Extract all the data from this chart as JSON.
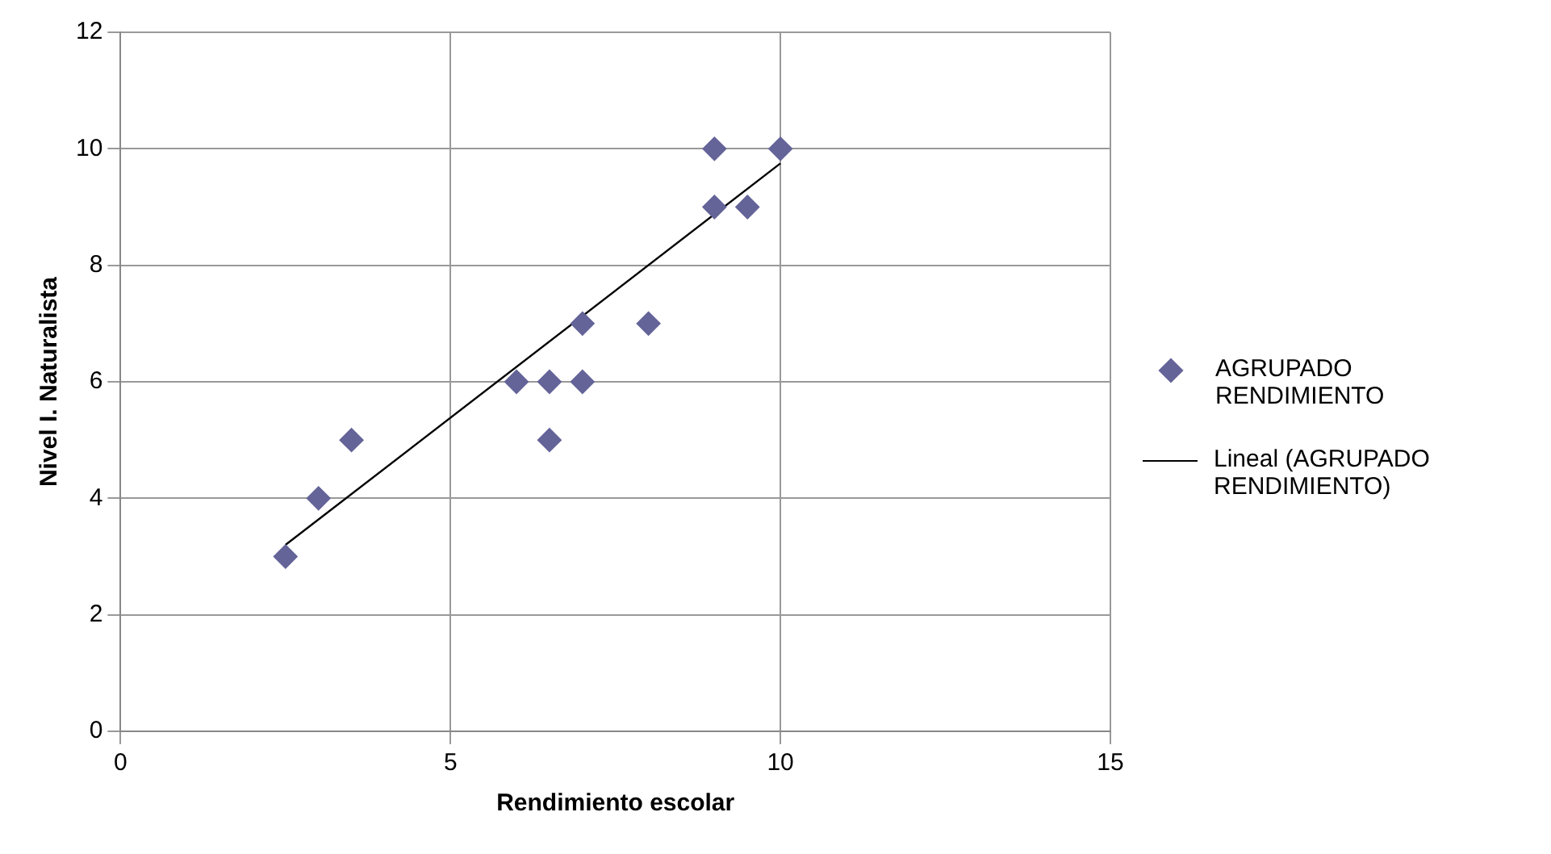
{
  "chart_data": {
    "type": "scatter",
    "xlabel": "Rendimiento escolar",
    "ylabel": "Nivel I. Naturalista",
    "series": [
      {
        "name": "AGRUPADO RENDIMIENTO",
        "color": "#646499",
        "marker": "diamond",
        "x": [
          2.5,
          3,
          3.5,
          6,
          6.5,
          6.5,
          7,
          7,
          8,
          9,
          9,
          9.5,
          10
        ],
        "values": [
          3,
          4,
          5,
          6,
          6,
          5,
          7,
          6,
          7,
          10,
          9,
          9,
          10
        ]
      },
      {
        "name": "Lineal (AGRUPADO RENDIMIENTO)",
        "type": "line",
        "color": "#000000",
        "marker": "none",
        "x": [
          2.5,
          10
        ],
        "values": [
          3.2,
          9.75
        ]
      }
    ],
    "xlim": [
      0,
      15
    ],
    "xticks": [
      0,
      5,
      10,
      15
    ],
    "ylim": [
      0,
      12
    ],
    "yticks": [
      0,
      2,
      4,
      6,
      8,
      10,
      12
    ],
    "grid": true,
    "legend": "right"
  }
}
